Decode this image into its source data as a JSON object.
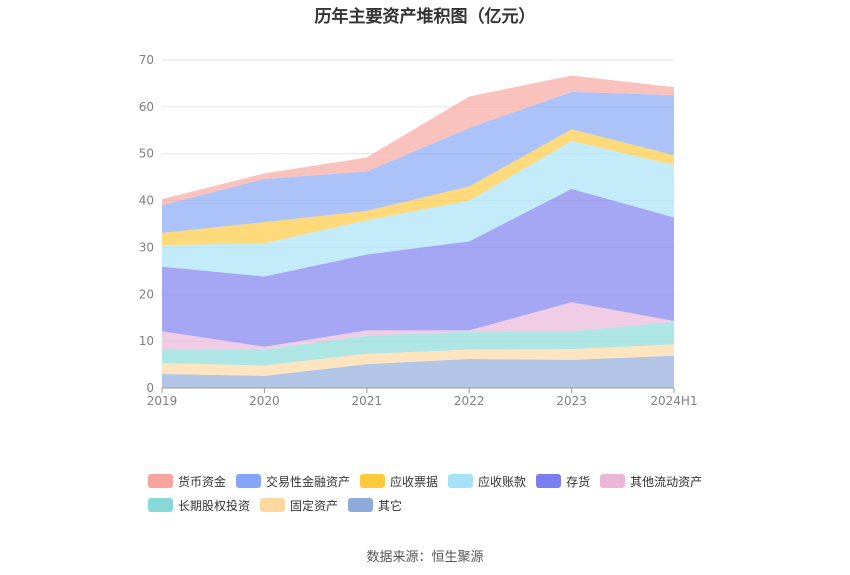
{
  "source_text": "数据来源：恒生聚源",
  "chart_data": {
    "type": "area",
    "stacked": true,
    "title": "历年主要资产堆积图（亿元）",
    "xlabel": "",
    "ylabel": "",
    "categories": [
      "2019",
      "2020",
      "2021",
      "2022",
      "2023",
      "2024H1"
    ],
    "ylim": [
      0,
      70
    ],
    "yticks": [
      0,
      10,
      20,
      30,
      40,
      50,
      60,
      70
    ],
    "grid": true,
    "legend_position": "bottom",
    "series": [
      {
        "name": "其它",
        "color": "#8eaadb",
        "values": [
          3.0,
          2.6,
          5.1,
          6.2,
          6.0,
          6.9
        ]
      },
      {
        "name": "固定资产",
        "color": "#ffd8a0",
        "values": [
          2.3,
          2.2,
          2.2,
          2.0,
          2.3,
          2.4
        ]
      },
      {
        "name": "长期股权投资",
        "color": "#88d8d8",
        "values": [
          3.0,
          3.4,
          3.9,
          3.8,
          3.8,
          4.8
        ]
      },
      {
        "name": "其他流动资产",
        "color": "#ebb6d9",
        "values": [
          3.8,
          0.6,
          1.1,
          0.3,
          6.2,
          0.2
        ]
      },
      {
        "name": "存货",
        "color": "#7b7ef0",
        "values": [
          13.8,
          15.0,
          16.2,
          19.0,
          24.2,
          22.1
        ]
      },
      {
        "name": "应收账款",
        "color": "#a8e2f8",
        "values": [
          4.6,
          7.1,
          7.3,
          8.7,
          10.2,
          11.2
        ]
      },
      {
        "name": "应收票据",
        "color": "#ffc93c",
        "values": [
          2.6,
          4.5,
          2.0,
          3.0,
          2.5,
          2.1
        ]
      },
      {
        "name": "交易性金融资产",
        "color": "#85a6f8",
        "values": [
          5.9,
          9.2,
          8.4,
          12.5,
          8.0,
          12.8
        ]
      },
      {
        "name": "货币资金",
        "color": "#f7a59d",
        "values": [
          1.3,
          1.2,
          3.0,
          6.7,
          3.5,
          1.7
        ]
      }
    ],
    "legend_order": [
      "货币资金",
      "交易性金融资产",
      "应收票据",
      "应收账款",
      "存货",
      "其他流动资产",
      "长期股权投资",
      "固定资产",
      "其它"
    ]
  }
}
